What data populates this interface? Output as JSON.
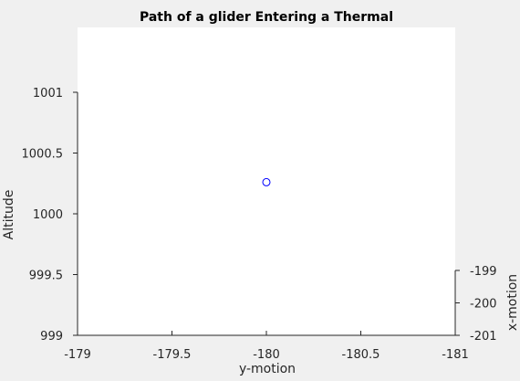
{
  "chart_data": {
    "type": "scatter",
    "title": "Path of a glider Entering a Thermal",
    "xlabel": "y-motion",
    "ylabel": "Altitude",
    "zlabel": "x-motion",
    "xlim": [
      -179,
      -181
    ],
    "ylim": [
      999,
      1001
    ],
    "zlim": [
      -201,
      -199
    ],
    "x_ticks": [
      -179,
      -179.5,
      -180,
      -180.5,
      -181
    ],
    "x_tick_labels": [
      "-179",
      "-179.5",
      "-180",
      "-180.5",
      "-181"
    ],
    "y_ticks": [
      999,
      999.5,
      1000,
      1000.5,
      1001
    ],
    "y_tick_labels": [
      "999",
      "999.5",
      "1000",
      "1000.5",
      "1001"
    ],
    "z_ticks": [
      -201,
      -200,
      -199
    ],
    "z_tick_labels": [
      "-201",
      "-200",
      "-199"
    ],
    "points": [
      {
        "x": -180,
        "y": 1000.26
      }
    ],
    "marker": "circle",
    "marker_color": "#0000ff",
    "grid": false,
    "legend": "none"
  }
}
